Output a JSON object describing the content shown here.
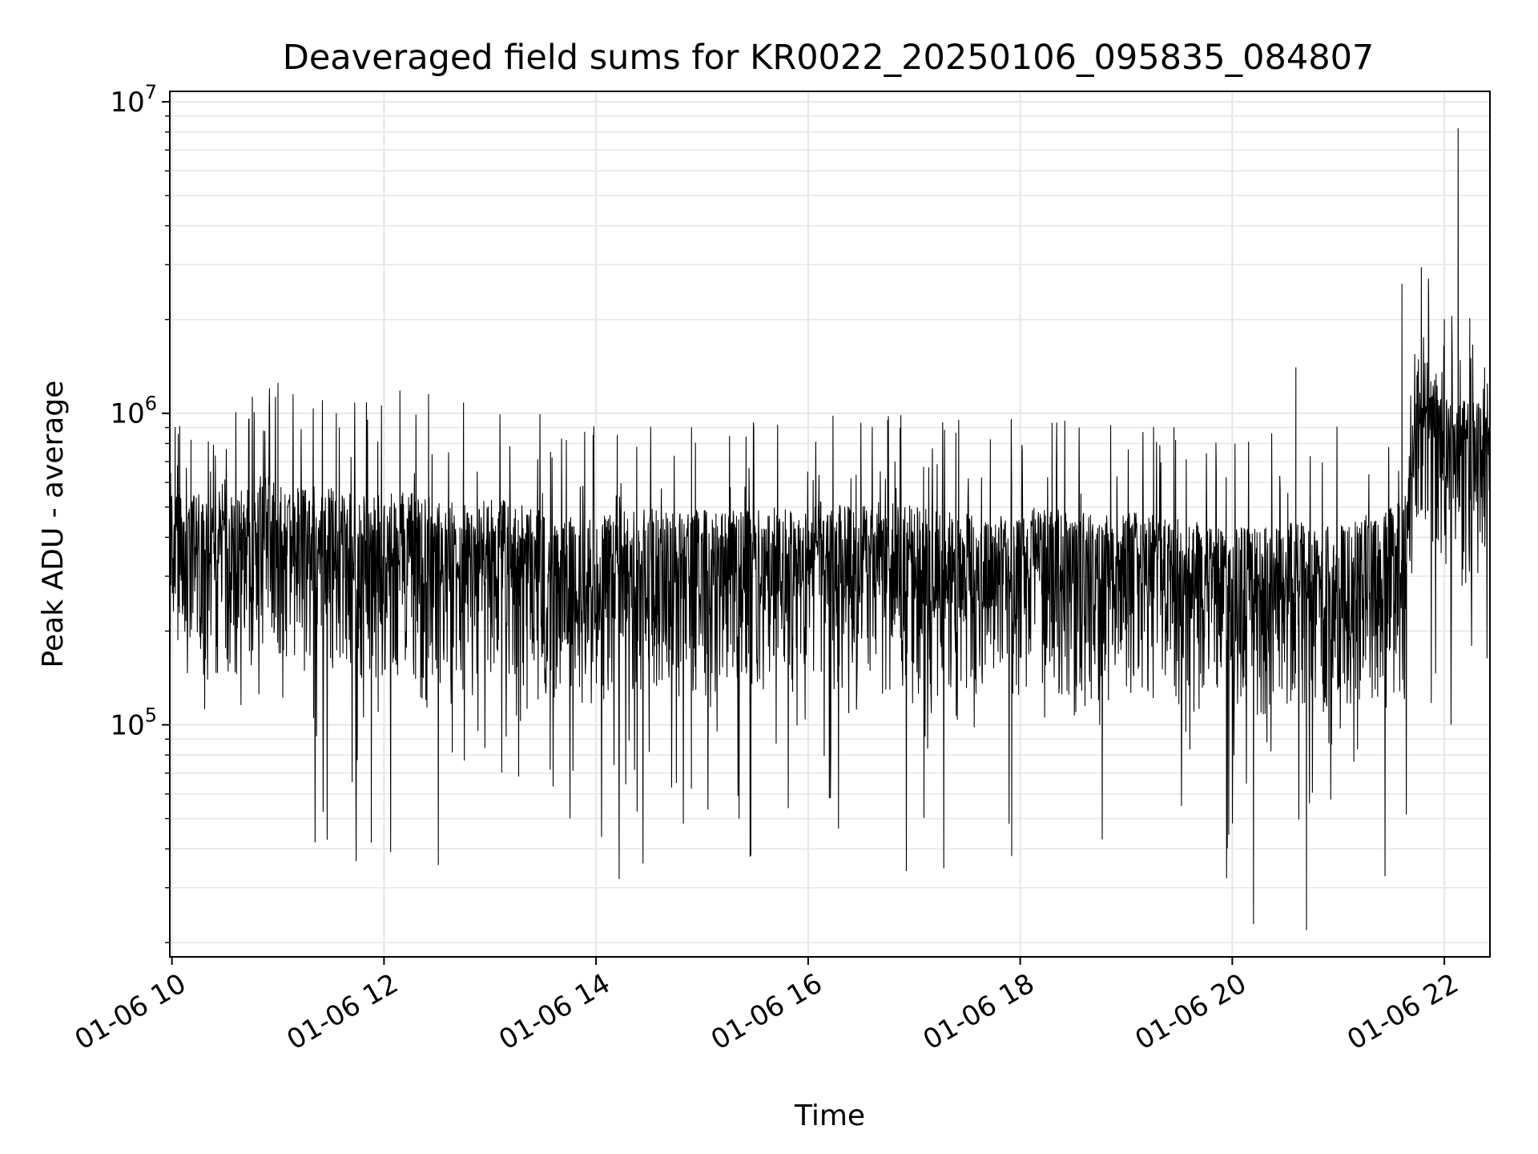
{
  "chart_data": {
    "type": "line",
    "title": "Deaveraged field sums for KR0022_20250106_095835_084807",
    "xlabel": "Time",
    "ylabel": "Peak ADU - average",
    "yscale": "log",
    "ylim": [
      18000,
      10800000
    ],
    "xlim_hours": [
      9.98,
      22.43
    ],
    "grid": true,
    "line_color": "#000000",
    "grid_color": "#e6e6e6",
    "x_ticks": [
      {
        "hour": 10,
        "label": "01-06 10"
      },
      {
        "hour": 12,
        "label": "01-06 12"
      },
      {
        "hour": 14,
        "label": "01-06 14"
      },
      {
        "hour": 16,
        "label": "01-06 16"
      },
      {
        "hour": 18,
        "label": "01-06 18"
      },
      {
        "hour": 20,
        "label": "01-06 20"
      },
      {
        "hour": 22,
        "label": "01-06 22"
      }
    ],
    "y_ticks": [
      {
        "value": 100000,
        "base": "10",
        "exp": "5"
      },
      {
        "value": 1000000,
        "base": "10",
        "exp": "6"
      },
      {
        "value": 10000000,
        "base": "10",
        "exp": "7"
      }
    ],
    "series": [
      {
        "values": [
          [
            9.98,
            380000
          ],
          [
            10.1,
            290000
          ],
          [
            10.25,
            310000
          ],
          [
            10.4,
            270000
          ],
          [
            10.55,
            300000
          ],
          [
            10.7,
            330000
          ],
          [
            10.85,
            360000
          ],
          [
            11.0,
            340000
          ],
          [
            11.2,
            320000
          ],
          [
            11.4,
            330000
          ],
          [
            11.6,
            310000
          ],
          [
            11.8,
            300000
          ],
          [
            12.0,
            310000
          ],
          [
            12.2,
            320000
          ],
          [
            12.4,
            300000
          ],
          [
            12.6,
            290000
          ],
          [
            12.8,
            280000
          ],
          [
            13.0,
            300000
          ],
          [
            13.2,
            290000
          ],
          [
            13.4,
            280000
          ],
          [
            13.6,
            270000
          ],
          [
            13.8,
            260000
          ],
          [
            14.0,
            260000
          ],
          [
            14.3,
            270000
          ],
          [
            14.6,
            280000
          ],
          [
            14.9,
            270000
          ],
          [
            15.2,
            280000
          ],
          [
            15.5,
            270000
          ],
          [
            15.8,
            280000
          ],
          [
            16.1,
            290000
          ],
          [
            16.4,
            280000
          ],
          [
            16.7,
            290000
          ],
          [
            17.0,
            280000
          ],
          [
            17.3,
            270000
          ],
          [
            17.6,
            260000
          ],
          [
            17.9,
            270000
          ],
          [
            18.2,
            280000
          ],
          [
            18.5,
            270000
          ],
          [
            18.8,
            260000
          ],
          [
            19.1,
            270000
          ],
          [
            19.4,
            260000
          ],
          [
            19.7,
            250000
          ],
          [
            20.0,
            240000
          ],
          [
            20.3,
            240000
          ],
          [
            20.6,
            250000
          ],
          [
            20.9,
            250000
          ],
          [
            21.2,
            260000
          ],
          [
            21.45,
            270000
          ],
          [
            21.6,
            290000
          ],
          [
            21.65,
            380000
          ],
          [
            21.7,
            600000
          ],
          [
            21.75,
            850000
          ],
          [
            21.8,
            1000000
          ],
          [
            21.85,
            900000
          ],
          [
            21.9,
            800000
          ],
          [
            21.95,
            700000
          ],
          [
            22.0,
            620000
          ],
          [
            22.1,
            600000
          ],
          [
            22.2,
            630000
          ],
          [
            22.3,
            650000
          ],
          [
            22.43,
            700000
          ]
        ]
      }
    ],
    "spikes": [
      [
        10.03,
        900000
      ],
      [
        10.18,
        820000
      ],
      [
        10.92,
        1200000
      ],
      [
        11.0,
        1250000
      ],
      [
        11.55,
        1000000
      ],
      [
        11.88,
        42000
      ],
      [
        12.15,
        1180000
      ],
      [
        12.42,
        1150000
      ],
      [
        12.75,
        1080000
      ],
      [
        14.2,
        850000
      ],
      [
        14.9,
        900000
      ],
      [
        16.75,
        950000
      ],
      [
        17.42,
        950000
      ],
      [
        17.92,
        38000
      ],
      [
        18.3,
        930000
      ],
      [
        19.45,
        900000
      ],
      [
        20.2,
        23000
      ],
      [
        20.6,
        1400000
      ],
      [
        20.7,
        22000
      ],
      [
        21.6,
        2600000
      ],
      [
        21.85,
        2700000
      ],
      [
        22.0,
        2000000
      ],
      [
        22.13,
        8200000
      ],
      [
        22.25,
        1500000
      ],
      [
        22.38,
        1400000
      ]
    ]
  }
}
